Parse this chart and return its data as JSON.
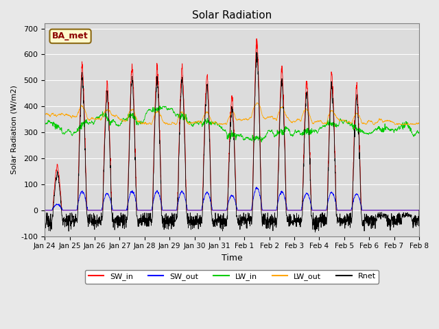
{
  "title": "Solar Radiation",
  "ylabel": "Solar Radiation (W/m2)",
  "xlabel": "Time",
  "station_label": "BA_met",
  "ylim": [
    -100,
    720
  ],
  "yticks": [
    -100,
    0,
    100,
    200,
    300,
    400,
    500,
    600,
    700
  ],
  "xtick_labels": [
    "Jan 24",
    "Jan 25",
    "Jan 26",
    "Jan 27",
    "Jan 28",
    "Jan 29",
    "Jan 30",
    "Jan 31",
    "Feb 1",
    "Feb 2",
    "Feb 3",
    "Feb 4",
    "Feb 5",
    "Feb 6",
    "Feb 7",
    "Feb 8"
  ],
  "colors": {
    "SW_in": "#FF0000",
    "SW_out": "#0000FF",
    "LW_in": "#00CC00",
    "LW_out": "#FFA500",
    "Rnet": "#000000"
  },
  "legend_labels": [
    "SW_in",
    "SW_out",
    "LW_in",
    "LW_out",
    "Rnet"
  ],
  "fig_bg_color": "#E8E8E8",
  "plot_bg_color": "#DCDCDC",
  "n_points": 2160,
  "days": 15,
  "sw_in_peaks": [
    175,
    560,
    490,
    560,
    560,
    555,
    530,
    440,
    670,
    550,
    500,
    530,
    480,
    0,
    0
  ],
  "lw_in_base": 340,
  "lw_out_base": 370
}
